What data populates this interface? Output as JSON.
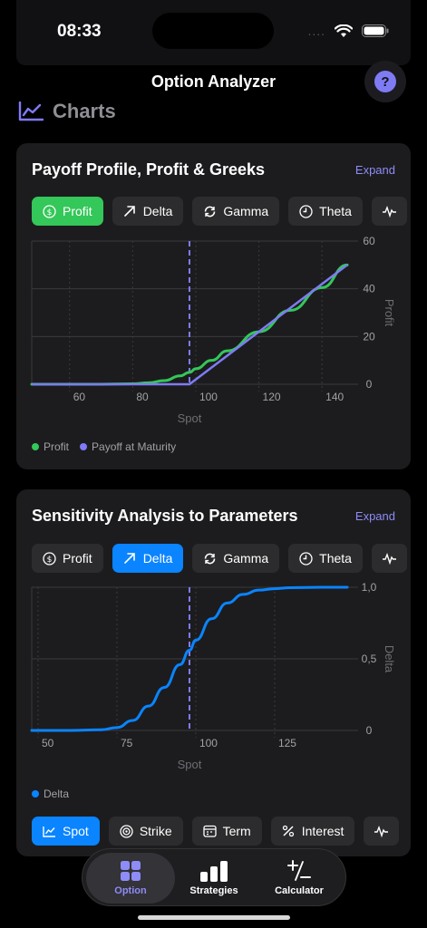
{
  "status": {
    "time": "08:33",
    "dots": "...."
  },
  "nav": {
    "title": "Option Analyzer",
    "help": "?"
  },
  "section": {
    "title": "Charts"
  },
  "card1": {
    "title": "Payoff Profile, Profit & Greeks",
    "expand": "Expand",
    "tabs": [
      "Profit",
      "Delta",
      "Gamma",
      "Theta"
    ],
    "legend": [
      "Profit",
      "Payoff at Maturity"
    ]
  },
  "card2": {
    "title": "Sensitivity Analysis to Parameters",
    "expand": "Expand",
    "tabs": [
      "Profit",
      "Delta",
      "Gamma",
      "Theta"
    ],
    "legend": [
      "Delta"
    ],
    "params": [
      "Spot",
      "Strike",
      "Term",
      "Interest"
    ]
  },
  "tabbar": {
    "items": [
      "Option",
      "Strategies",
      "Calculator"
    ]
  },
  "colors": {
    "profit": "#34c759",
    "payoff": "#7f7bf5",
    "delta": "#0a84ff",
    "accent": "#8e8cf6"
  },
  "chart_data": [
    {
      "type": "line",
      "xlabel": "Spot",
      "ylabel": "Profit",
      "xlim": [
        48,
        148
      ],
      "ylim": [
        0,
        60
      ],
      "xticks": [
        60,
        80,
        100,
        120,
        140
      ],
      "yticks": [
        0,
        20,
        40,
        60
      ],
      "strike_line": 98,
      "series": [
        {
          "name": "Profit",
          "x": [
            48,
            70,
            80,
            85,
            90,
            95,
            98,
            100,
            105,
            110,
            120,
            130,
            140,
            148
          ],
          "y": [
            0,
            0,
            0.2,
            0.6,
            1.5,
            3.5,
            5,
            6.5,
            10,
            14,
            22,
            31,
            40.5,
            50
          ]
        },
        {
          "name": "Payoff at Maturity",
          "x": [
            48,
            98,
            148
          ],
          "y": [
            0,
            0,
            50
          ]
        }
      ],
      "legend_position": "bottom-left"
    },
    {
      "type": "line",
      "xlabel": "Spot",
      "ylabel": "Delta",
      "xlim": [
        48,
        148
      ],
      "ylim": [
        0,
        1
      ],
      "xticks": [
        50,
        75,
        100,
        125
      ],
      "ytick_labels": [
        "0",
        "0,5",
        "1,0"
      ],
      "yticks": [
        0,
        0.5,
        1
      ],
      "strike_line": 98,
      "series": [
        {
          "name": "Delta",
          "x": [
            48,
            60,
            70,
            75,
            80,
            85,
            90,
            95,
            98,
            100,
            105,
            110,
            115,
            120,
            125,
            130,
            140,
            148
          ],
          "y": [
            0,
            0,
            0.005,
            0.02,
            0.07,
            0.17,
            0.3,
            0.46,
            0.56,
            0.63,
            0.78,
            0.89,
            0.95,
            0.98,
            0.99,
            0.997,
            1,
            1
          ]
        }
      ],
      "legend_position": "bottom-left"
    }
  ]
}
